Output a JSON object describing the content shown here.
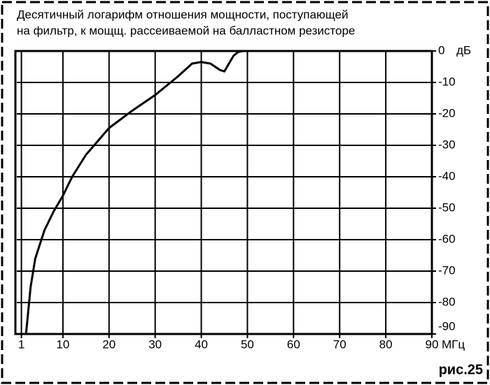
{
  "chart_data": {
    "type": "line",
    "title": [
      "Десятичный логарифм отношения мощности, поступающей",
      "на фильтр, к мощщ. рассеиваемой на балластном резисторе"
    ],
    "x_unit": "МГц",
    "y_unit": "дБ",
    "figure_label": "рис.25",
    "xlim": [
      0,
      90
    ],
    "xticks": [
      1,
      10,
      20,
      30,
      40,
      50,
      60,
      70,
      80,
      90
    ],
    "ylim": [
      -90,
      0
    ],
    "yticks": [
      0,
      -10,
      -20,
      -30,
      -40,
      -50,
      -60,
      -70,
      -80,
      -90
    ],
    "grid": true,
    "series": [
      {
        "color": "#000000",
        "x": [
          2,
          3,
          4,
          6,
          8,
          10,
          12,
          15,
          20,
          25,
          30,
          35,
          38,
          40,
          42,
          44,
          45,
          46,
          47,
          48,
          49,
          50
        ],
        "values": [
          -90,
          -75,
          -66,
          -57,
          -51,
          -46,
          -40,
          -33,
          -24.5,
          -19,
          -14,
          -8,
          -4,
          -3.5,
          -4,
          -6,
          -6.5,
          -4,
          -1.5,
          -0.3,
          0,
          0
        ]
      }
    ]
  }
}
